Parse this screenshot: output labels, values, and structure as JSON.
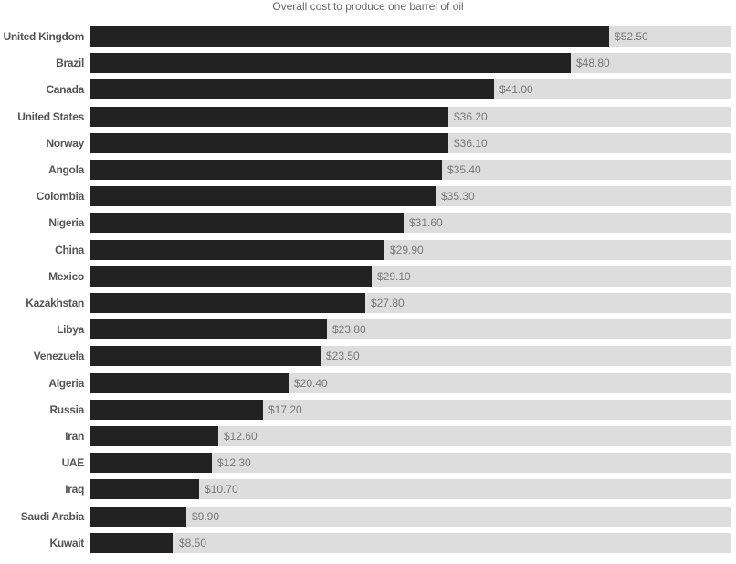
{
  "chart_data": {
    "type": "bar",
    "orientation": "horizontal",
    "title": "Overall cost to produce one barrel of oil",
    "xlabel": "",
    "ylabel": "",
    "grid": false,
    "legend": null,
    "categories": [
      "United Kingdom",
      "Brazil",
      "Canada",
      "United States",
      "Norway",
      "Angola",
      "Colombia",
      "Nigeria",
      "China",
      "Mexico",
      "Kazakhstan",
      "Libya",
      "Venezuela",
      "Algeria",
      "Russia",
      "Iran",
      "UAE",
      "Iraq",
      "Saudi Arabia",
      "Kuwait"
    ],
    "values": [
      52.5,
      48.8,
      41.0,
      36.2,
      36.1,
      35.4,
      35.3,
      31.6,
      29.9,
      29.1,
      27.8,
      23.8,
      23.5,
      20.4,
      17.2,
      12.6,
      12.3,
      10.7,
      9.9,
      8.5
    ],
    "value_labels": [
      "$52.50",
      "$48.80",
      "$41.00",
      "$36.20",
      "$36.10",
      "$35.40",
      "$35.30",
      "$31.60",
      "$29.90",
      "$29.10",
      "$27.80",
      "$23.80",
      "$23.50",
      "$20.40",
      "$17.20",
      "$12.60",
      "$12.30",
      "$10.70",
      "$9.90",
      "$8.50"
    ],
    "bar_pixel_widths": [
      568,
      526,
      442,
      392,
      392,
      385,
      378,
      343,
      322,
      308,
      301,
      259,
      252,
      217,
      189,
      140,
      133,
      119,
      105,
      91
    ],
    "colors": {
      "bar": "#222222",
      "track": "#dddddd",
      "label": "#555555",
      "value": "#777777",
      "title": "#666666"
    }
  }
}
